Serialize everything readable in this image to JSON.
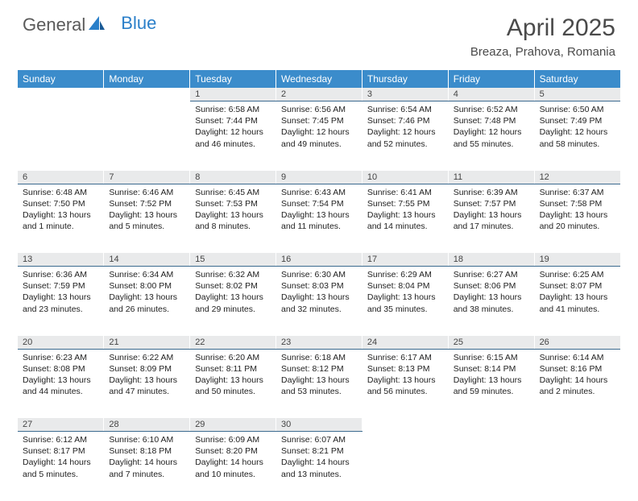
{
  "logo": {
    "text1": "General",
    "text2": "Blue"
  },
  "title": "April 2025",
  "location": "Breaza, Prahova, Romania",
  "header_bg": "#3b8ccb",
  "daynum_bg": "#e9eaeb",
  "day_border": "#3b6a8f",
  "weekdays": [
    "Sunday",
    "Monday",
    "Tuesday",
    "Wednesday",
    "Thursday",
    "Friday",
    "Saturday"
  ],
  "weeks": [
    [
      null,
      null,
      {
        "n": "1",
        "sr": "6:58 AM",
        "ss": "7:44 PM",
        "dl": "12 hours and 46 minutes."
      },
      {
        "n": "2",
        "sr": "6:56 AM",
        "ss": "7:45 PM",
        "dl": "12 hours and 49 minutes."
      },
      {
        "n": "3",
        "sr": "6:54 AM",
        "ss": "7:46 PM",
        "dl": "12 hours and 52 minutes."
      },
      {
        "n": "4",
        "sr": "6:52 AM",
        "ss": "7:48 PM",
        "dl": "12 hours and 55 minutes."
      },
      {
        "n": "5",
        "sr": "6:50 AM",
        "ss": "7:49 PM",
        "dl": "12 hours and 58 minutes."
      }
    ],
    [
      {
        "n": "6",
        "sr": "6:48 AM",
        "ss": "7:50 PM",
        "dl": "13 hours and 1 minute."
      },
      {
        "n": "7",
        "sr": "6:46 AM",
        "ss": "7:52 PM",
        "dl": "13 hours and 5 minutes."
      },
      {
        "n": "8",
        "sr": "6:45 AM",
        "ss": "7:53 PM",
        "dl": "13 hours and 8 minutes."
      },
      {
        "n": "9",
        "sr": "6:43 AM",
        "ss": "7:54 PM",
        "dl": "13 hours and 11 minutes."
      },
      {
        "n": "10",
        "sr": "6:41 AM",
        "ss": "7:55 PM",
        "dl": "13 hours and 14 minutes."
      },
      {
        "n": "11",
        "sr": "6:39 AM",
        "ss": "7:57 PM",
        "dl": "13 hours and 17 minutes."
      },
      {
        "n": "12",
        "sr": "6:37 AM",
        "ss": "7:58 PM",
        "dl": "13 hours and 20 minutes."
      }
    ],
    [
      {
        "n": "13",
        "sr": "6:36 AM",
        "ss": "7:59 PM",
        "dl": "13 hours and 23 minutes."
      },
      {
        "n": "14",
        "sr": "6:34 AM",
        "ss": "8:00 PM",
        "dl": "13 hours and 26 minutes."
      },
      {
        "n": "15",
        "sr": "6:32 AM",
        "ss": "8:02 PM",
        "dl": "13 hours and 29 minutes."
      },
      {
        "n": "16",
        "sr": "6:30 AM",
        "ss": "8:03 PM",
        "dl": "13 hours and 32 minutes."
      },
      {
        "n": "17",
        "sr": "6:29 AM",
        "ss": "8:04 PM",
        "dl": "13 hours and 35 minutes."
      },
      {
        "n": "18",
        "sr": "6:27 AM",
        "ss": "8:06 PM",
        "dl": "13 hours and 38 minutes."
      },
      {
        "n": "19",
        "sr": "6:25 AM",
        "ss": "8:07 PM",
        "dl": "13 hours and 41 minutes."
      }
    ],
    [
      {
        "n": "20",
        "sr": "6:23 AM",
        "ss": "8:08 PM",
        "dl": "13 hours and 44 minutes."
      },
      {
        "n": "21",
        "sr": "6:22 AM",
        "ss": "8:09 PM",
        "dl": "13 hours and 47 minutes."
      },
      {
        "n": "22",
        "sr": "6:20 AM",
        "ss": "8:11 PM",
        "dl": "13 hours and 50 minutes."
      },
      {
        "n": "23",
        "sr": "6:18 AM",
        "ss": "8:12 PM",
        "dl": "13 hours and 53 minutes."
      },
      {
        "n": "24",
        "sr": "6:17 AM",
        "ss": "8:13 PM",
        "dl": "13 hours and 56 minutes."
      },
      {
        "n": "25",
        "sr": "6:15 AM",
        "ss": "8:14 PM",
        "dl": "13 hours and 59 minutes."
      },
      {
        "n": "26",
        "sr": "6:14 AM",
        "ss": "8:16 PM",
        "dl": "14 hours and 2 minutes."
      }
    ],
    [
      {
        "n": "27",
        "sr": "6:12 AM",
        "ss": "8:17 PM",
        "dl": "14 hours and 5 minutes."
      },
      {
        "n": "28",
        "sr": "6:10 AM",
        "ss": "8:18 PM",
        "dl": "14 hours and 7 minutes."
      },
      {
        "n": "29",
        "sr": "6:09 AM",
        "ss": "8:20 PM",
        "dl": "14 hours and 10 minutes."
      },
      {
        "n": "30",
        "sr": "6:07 AM",
        "ss": "8:21 PM",
        "dl": "14 hours and 13 minutes."
      },
      null,
      null,
      null
    ]
  ],
  "labels": {
    "sunrise": "Sunrise: ",
    "sunset": "Sunset: ",
    "daylight": "Daylight: "
  }
}
